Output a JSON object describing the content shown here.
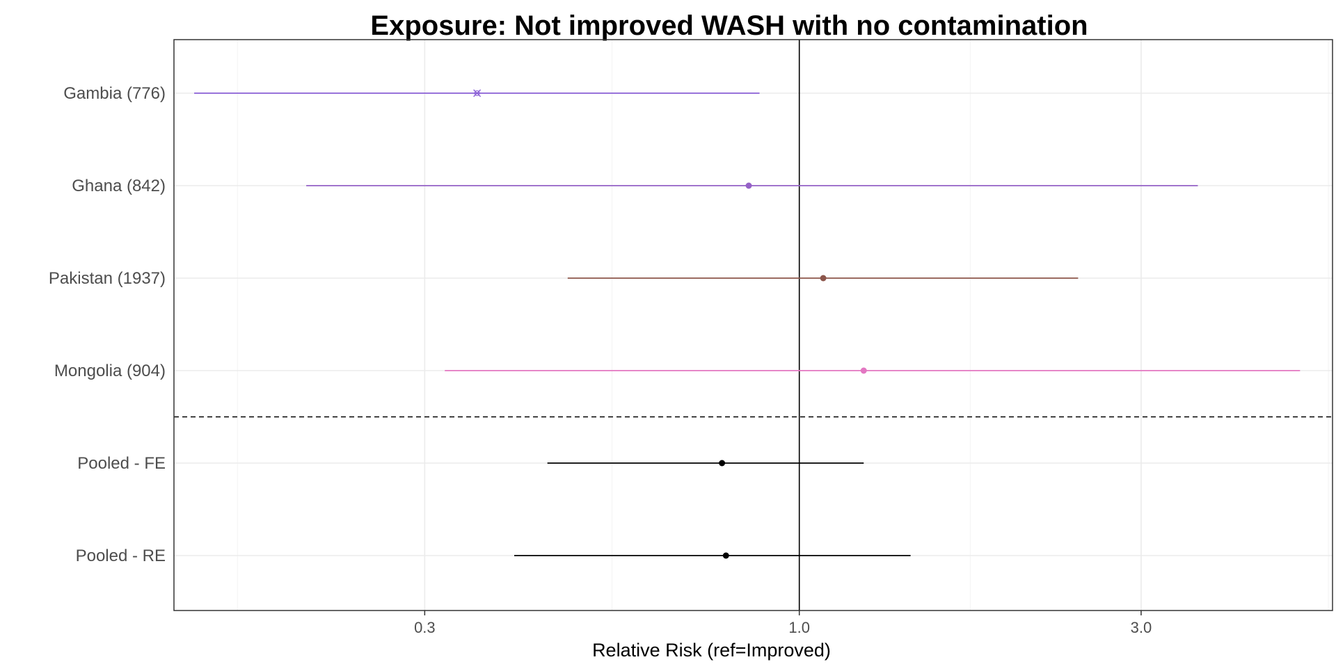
{
  "chart_data": {
    "type": "forest",
    "title": "Exposure: Not improved WASH with no contamination",
    "xlabel": "Relative Risk (ref=Improved)",
    "ylabel": "",
    "x_scale": "log",
    "xlim": [
      0.134,
      5.55
    ],
    "x_ticks": [
      {
        "value": 0.3,
        "label": "0.3"
      },
      {
        "value": 1.0,
        "label": "1.0"
      },
      {
        "value": 3.0,
        "label": "3.0"
      }
    ],
    "grid": true,
    "reference_line": 1.0,
    "separator_after_row": 4,
    "rows": [
      {
        "label": "Gambia (776)",
        "estimate": 0.355,
        "lower": 0.143,
        "upper": 0.88,
        "color": "#8a5fd6",
        "marker": "x"
      },
      {
        "label": "Ghana (842)",
        "estimate": 0.85,
        "lower": 0.205,
        "upper": 3.6,
        "color": "#9561c7",
        "marker": "circle"
      },
      {
        "label": "Pakistan (1937)",
        "estimate": 1.08,
        "lower": 0.475,
        "upper": 2.45,
        "color": "#8c564b",
        "marker": "circle"
      },
      {
        "label": "Mongolia (904)",
        "estimate": 1.23,
        "lower": 0.32,
        "upper": 5.0,
        "color": "#e377c2",
        "marker": "circle"
      },
      {
        "label": "Pooled - FE",
        "estimate": 0.78,
        "lower": 0.445,
        "upper": 1.23,
        "color": "#000000",
        "marker": "circle"
      },
      {
        "label": "Pooled - RE",
        "estimate": 0.79,
        "lower": 0.4,
        "upper": 1.43,
        "color": "#000000",
        "marker": "circle"
      }
    ]
  }
}
